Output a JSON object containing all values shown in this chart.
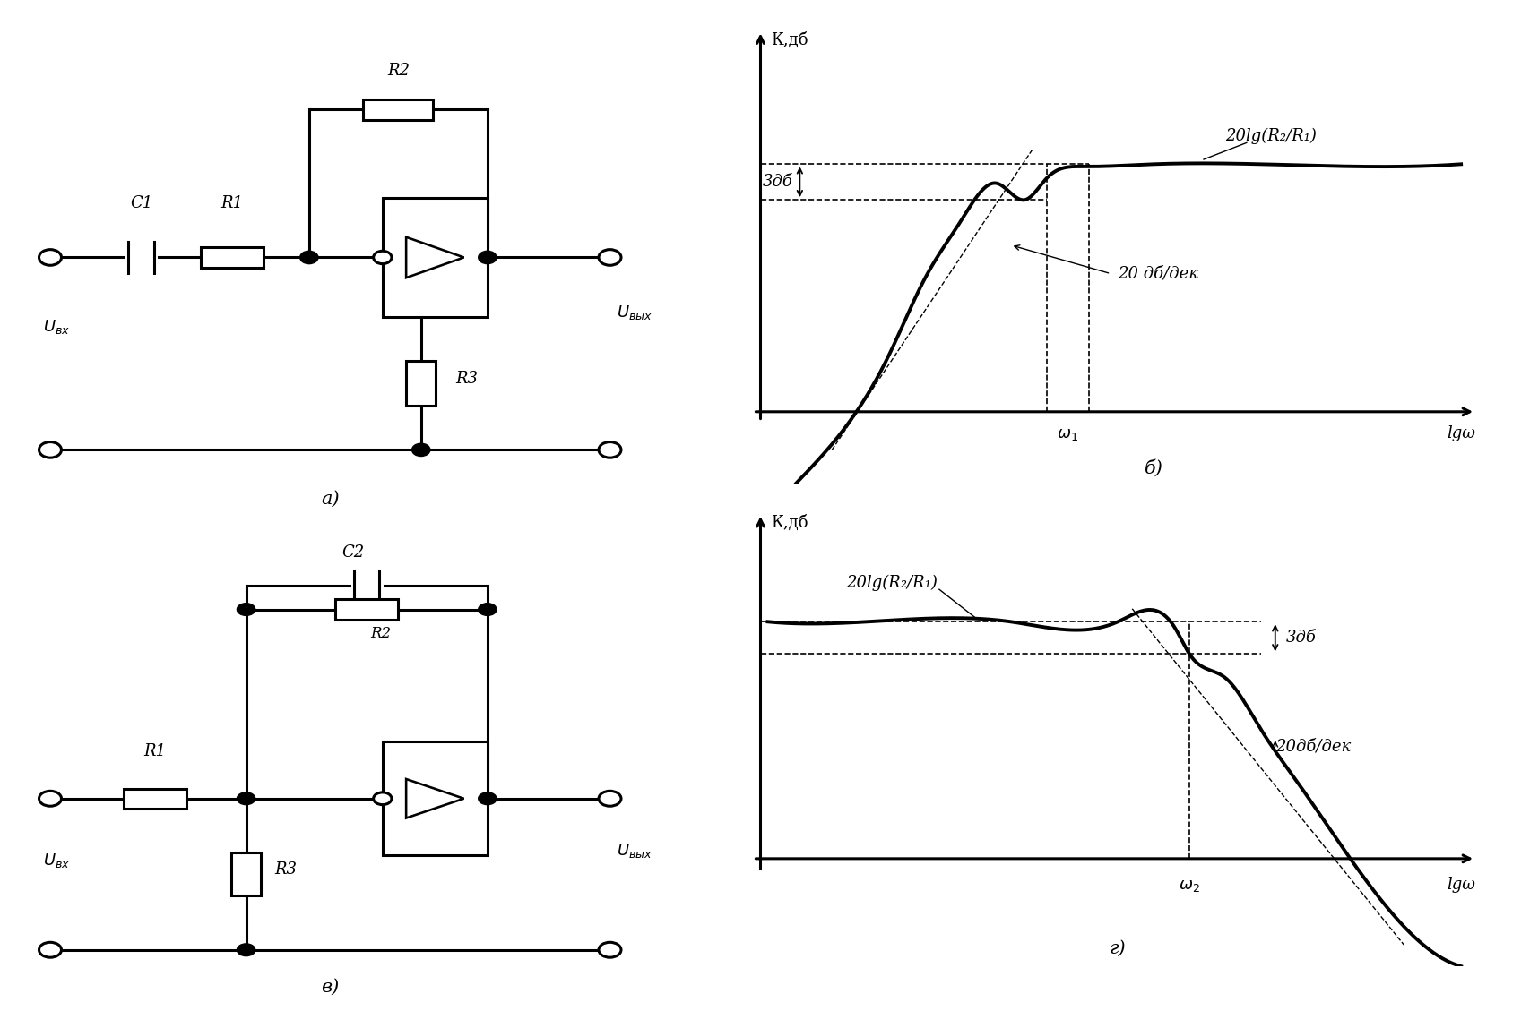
{
  "bg_color": "#ffffff",
  "line_color": "#000000",
  "figsize": [
    16.97,
    11.48
  ],
  "dpi": 100,
  "lw_circuit": 2.2,
  "lw_plot": 2.8,
  "lw_dash": 1.3,
  "fs_label": 13,
  "fs_axis": 13,
  "fs_panel": 15,
  "panel_labels": [
    "а)",
    "б)",
    "в)",
    "г)"
  ],
  "ylabel": "К,дб",
  "xlabel": "lgω",
  "omega1": "ω₁",
  "omega2": "ω₂",
  "label_3db": "3дб",
  "label_gain": "20lg(R₂/R₁)",
  "label_slope_top": "20 дб/дек",
  "label_slope_bot": "20дб/дек"
}
